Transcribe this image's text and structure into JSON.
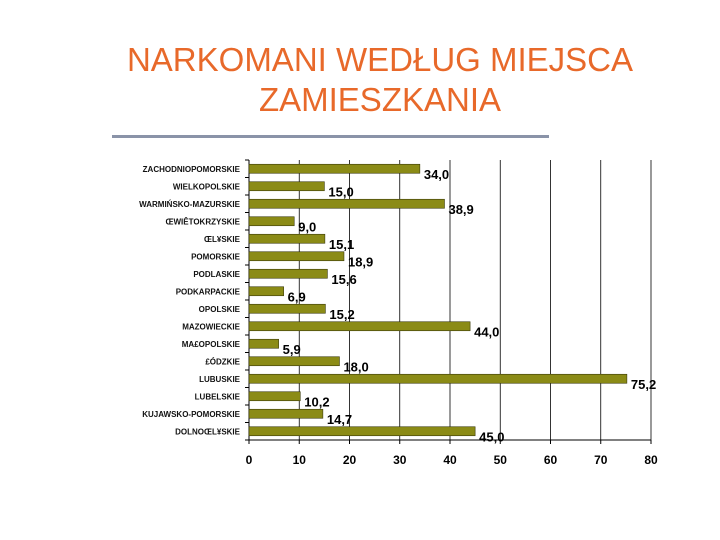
{
  "slide": {
    "title_line1": "NARKOMANI WEDŁUG MIEJSCA",
    "title_line2": "ZAMIESZKANIA"
  },
  "colors": {
    "title": "#e8692a",
    "rule": "#8a93a8",
    "bar": "#8b8b16",
    "grid": "#000000"
  },
  "chart_data": {
    "type": "bar",
    "orientation": "horizontal",
    "title": "",
    "xlabel": "",
    "ylabel": "",
    "xlim": [
      0,
      80
    ],
    "grid": true,
    "legend": "none",
    "ticks": [
      0,
      10,
      20,
      30,
      40,
      50,
      60,
      70,
      80
    ],
    "tick_labels": [
      "0",
      "10",
      "20",
      "30",
      "40",
      "50",
      "60",
      "70",
      "80"
    ],
    "categories": [
      "ZACHODNIOPOMORSKIE",
      "WIELKOPOLSKIE",
      "WARMIŃSKO-MAZURSKIE",
      "ŒWIÊTOKRZYSKIE",
      "ŒL¥SKIE",
      "POMORSKIE",
      "PODLASKIE",
      "PODKARPACKIE",
      "OPOLSKIE",
      "MAZOWIECKIE",
      "MA£OPOLSKIE",
      "£ÓDZKIE",
      "LUBUSKIE",
      "LUBELSKIE",
      "KUJAWSKO-POMORSKIE",
      "DOLNOŒL¥SKIE"
    ],
    "values": [
      34.0,
      15.0,
      38.9,
      9.0,
      15.1,
      18.9,
      15.6,
      6.9,
      15.2,
      44.0,
      5.9,
      18.0,
      75.2,
      10.2,
      14.7,
      45.0
    ],
    "value_labels": [
      "34,0",
      "15,0",
      "38,9",
      "9,0",
      "15,1",
      "18,9",
      "15,6",
      "6,9",
      "15,2",
      "44,0",
      "5,9",
      "18,0",
      "75,2",
      "10,2",
      "14,7",
      "45,0"
    ]
  }
}
